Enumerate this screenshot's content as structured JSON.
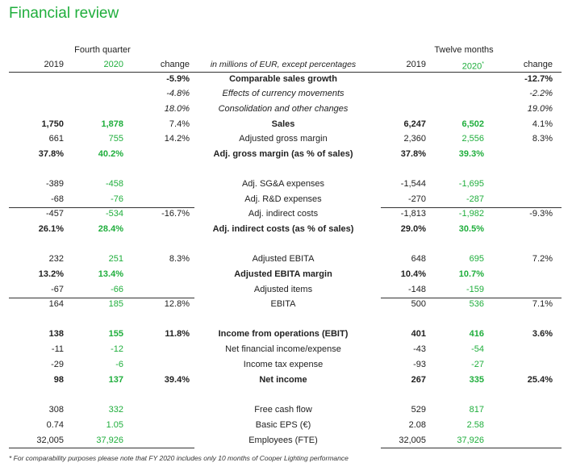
{
  "title": "Financial review",
  "groups": {
    "quarter": "Fourth quarter",
    "year": "Twelve months"
  },
  "header": {
    "q_2019": "2019",
    "q_2020": "2020",
    "q_change": "change",
    "label": "in millions of EUR, except percentages",
    "y_2019": "2019",
    "y_2020": "2020",
    "y_2020_marker": "*",
    "y_change": "change"
  },
  "rows": [
    {
      "label": "Comparable sales growth",
      "q19": "",
      "q20": "",
      "qch": "-5.9%",
      "y19": "",
      "y20": "",
      "ych": "-12.7%",
      "bold": true
    },
    {
      "label": "Effects of currency movements",
      "q19": "",
      "q20": "",
      "qch": "-4.8%",
      "y19": "",
      "y20": "",
      "ych": "-2.2%",
      "italic": true
    },
    {
      "label": "Consolidation and other changes",
      "q19": "",
      "q20": "",
      "qch": "18.0%",
      "y19": "",
      "y20": "",
      "ych": "19.0%",
      "italic": true
    },
    {
      "label": "Sales",
      "q19": "1,750",
      "q20": "1,878",
      "qch": "7.4%",
      "y19": "6,247",
      "y20": "6,502",
      "ych": "4.1%",
      "bold": true,
      "plain_change": true
    },
    {
      "label": "Adjusted gross margin",
      "q19": "661",
      "q20": "755",
      "qch": "14.2%",
      "y19": "2,360",
      "y20": "2,556",
      "ych": "8.3%"
    },
    {
      "label": "Adj. gross margin (as % of sales)",
      "q19": "37.8%",
      "q20": "40.2%",
      "qch": "",
      "y19": "37.8%",
      "y20": "39.3%",
      "ych": "",
      "bold": true
    },
    {
      "label": "Adj. SG&A expenses",
      "q19": "-389",
      "q20": "-458",
      "qch": "",
      "y19": "-1,544",
      "y20": "-1,695",
      "ych": ""
    },
    {
      "label": "Adj. R&D expenses",
      "q19": "-68",
      "q20": "-76",
      "qch": "",
      "y19": "-270",
      "y20": "-287",
      "ych": ""
    },
    {
      "label": "Adj. indirect costs",
      "q19": "-457",
      "q20": "-534",
      "qch": "-16.7%",
      "y19": "-1,813",
      "y20": "-1,982",
      "ych": "-9.3%"
    },
    {
      "label": "Adj. indirect costs (as % of sales)",
      "q19": "26.1%",
      "q20": "28.4%",
      "qch": "",
      "y19": "29.0%",
      "y20": "30.5%",
      "ych": "",
      "bold": true
    },
    {
      "label": "Adjusted EBITA",
      "q19": "232",
      "q20": "251",
      "qch": "8.3%",
      "y19": "648",
      "y20": "695",
      "ych": "7.2%"
    },
    {
      "label": "Adjusted EBITA margin",
      "q19": "13.2%",
      "q20": "13.4%",
      "qch": "",
      "y19": "10.4%",
      "y20": "10.7%",
      "ych": "",
      "bold": true
    },
    {
      "label": "Adjusted items",
      "q19": "-67",
      "q20": "-66",
      "qch": "",
      "y19": "-148",
      "y20": "-159",
      "ych": ""
    },
    {
      "label": "EBITA",
      "q19": "164",
      "q20": "185",
      "qch": "12.8%",
      "y19": "500",
      "y20": "536",
      "ych": "7.1%"
    },
    {
      "label": "Income from operations (EBIT)",
      "q19": "138",
      "q20": "155",
      "qch": "11.8%",
      "y19": "401",
      "y20": "416",
      "ych": "3.6%",
      "bold": true
    },
    {
      "label": "Net financial income/expense",
      "q19": "-11",
      "q20": "-12",
      "qch": "",
      "y19": "-43",
      "y20": "-54",
      "ych": ""
    },
    {
      "label": "Income tax expense",
      "q19": "-29",
      "q20": "-6",
      "qch": "",
      "y19": "-93",
      "y20": "-27",
      "ych": ""
    },
    {
      "label": "Net income",
      "q19": "98",
      "q20": "137",
      "qch": "39.4%",
      "y19": "267",
      "y20": "335",
      "ych": "25.4%",
      "bold": true
    },
    {
      "label": "Free cash flow",
      "q19": "308",
      "q20": "332",
      "qch": "",
      "y19": "529",
      "y20": "817",
      "ych": ""
    },
    {
      "label": "Basic EPS (€)",
      "q19": "0.74",
      "q20": "1.05",
      "qch": "",
      "y19": "2.08",
      "y20": "2.58",
      "ych": ""
    },
    {
      "label": "Employees (FTE)",
      "q19": "32,005",
      "q20": "37,926",
      "qch": "",
      "y19": "32,005",
      "y20": "37,926",
      "ych": ""
    }
  ],
  "footnote": "* For comparability purposes please note that FY 2020 includes only 10 months of Cooper Lighting performance",
  "colors": {
    "accent": "#1fae3c",
    "text": "#222222",
    "rule": "#333333"
  }
}
